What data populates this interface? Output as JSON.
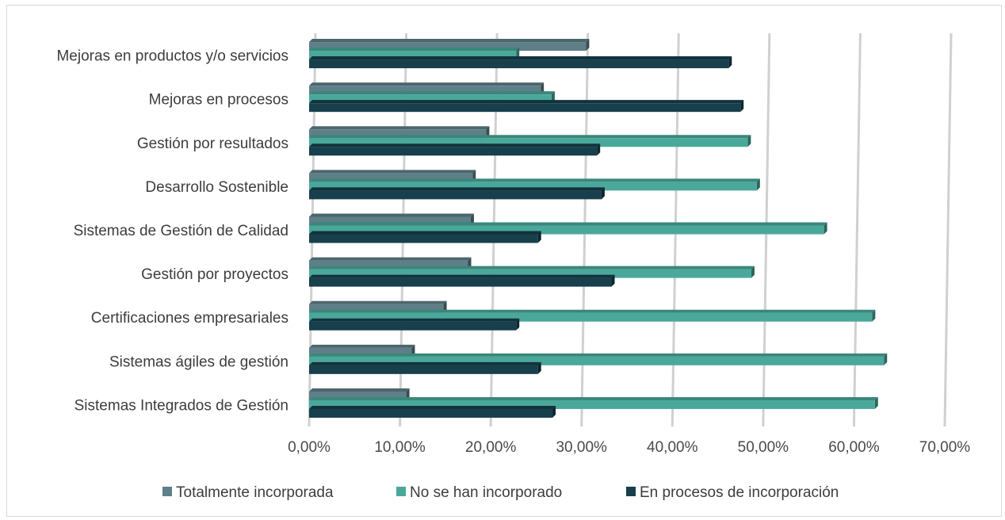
{
  "chart_data": {
    "type": "bar",
    "orientation": "horizontal",
    "categories": [
      "Mejoras en productos y/o servicios",
      "Mejoras en procesos",
      "Gestión por resultados",
      "Desarrollo Sostenible",
      "Sistemas de Gestión de Calidad",
      "Gestión por proyectos",
      "Certificaciones empresariales",
      "Sistemas ágiles de gestión",
      "Sistemas Integrados de Gestión"
    ],
    "series": [
      {
        "name": "Totalmente incorporada",
        "color": "#5f7f88",
        "values": [
          30.5,
          25.5,
          19.5,
          18.0,
          17.8,
          17.5,
          14.8,
          11.3,
          10.7
        ]
      },
      {
        "name": "No se han incorporado",
        "color": "#4aa89a",
        "values": [
          22.8,
          26.7,
          48.3,
          49.3,
          56.7,
          48.7,
          62.0,
          63.3,
          62.3
        ]
      },
      {
        "name": "En procesos de incorporación",
        "color": "#173f4c",
        "values": [
          46.2,
          47.5,
          31.7,
          32.2,
          25.2,
          33.3,
          22.8,
          25.2,
          26.8
        ]
      }
    ],
    "xlim": [
      0,
      70
    ],
    "x_ticks": [
      "0,00%",
      "10,00%",
      "20,00%",
      "30,00%",
      "40,00%",
      "50,00%",
      "60,00%",
      "70,00%"
    ],
    "title": "",
    "xlabel": "",
    "ylabel": "",
    "grid": "vertical",
    "legend": "bottom"
  }
}
